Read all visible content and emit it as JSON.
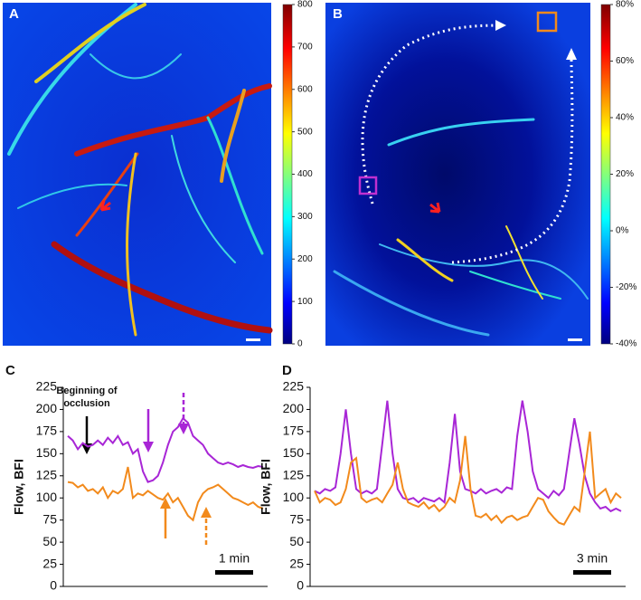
{
  "chart_data": [
    {
      "type": "heatmap",
      "panel": "A",
      "clim": [
        0,
        800
      ],
      "cticks": [
        0,
        100,
        200,
        300,
        400,
        500,
        600,
        700,
        800
      ]
    },
    {
      "type": "heatmap",
      "panel": "B",
      "clim": [
        -40,
        80
      ],
      "cticks": [
        {
          "value": -40,
          "label": "-40%"
        },
        {
          "value": -20,
          "label": "-20%"
        },
        {
          "value": 0,
          "label": "0%"
        },
        {
          "value": 20,
          "label": "20%"
        },
        {
          "value": 40,
          "label": "40%"
        },
        {
          "value": 60,
          "label": "60%"
        },
        {
          "value": 80,
          "label": "80%"
        }
      ]
    },
    {
      "type": "line",
      "panel": "C",
      "ylabel": "Flow, BFI",
      "ylim": [
        0,
        225
      ],
      "yticks": [
        0,
        25,
        50,
        75,
        100,
        125,
        150,
        175,
        200,
        225
      ],
      "annotation": [
        "Beginning of",
        "occlusion"
      ],
      "scalebar": "1 min",
      "series": [
        {
          "color": "#a826d6",
          "values": [
            170,
            165,
            155,
            162,
            158,
            160,
            165,
            160,
            168,
            162,
            170,
            160,
            163,
            150,
            155,
            130,
            118,
            120,
            125,
            140,
            160,
            175,
            180,
            190,
            185,
            170,
            165,
            160,
            150,
            145,
            140,
            138,
            140,
            138,
            135,
            137,
            135,
            134,
            136,
            135
          ]
        },
        {
          "color": "#f28a1c",
          "values": [
            118,
            117,
            112,
            115,
            108,
            110,
            105,
            112,
            100,
            108,
            105,
            110,
            135,
            100,
            105,
            103,
            108,
            104,
            100,
            98,
            105,
            95,
            100,
            90,
            80,
            75,
            95,
            105,
            110,
            112,
            115,
            110,
            105,
            100,
            98,
            95,
            92,
            95,
            90,
            88
          ]
        }
      ]
    },
    {
      "type": "line",
      "panel": "D",
      "ylabel": "Flow, BFI",
      "ylim": [
        0,
        225
      ],
      "yticks": [
        0,
        25,
        50,
        75,
        100,
        125,
        150,
        175,
        200,
        225
      ],
      "scalebar": "3 min",
      "series": [
        {
          "color": "#a826d6",
          "values": [
            108,
            105,
            110,
            108,
            112,
            150,
            200,
            150,
            110,
            105,
            108,
            105,
            110,
            160,
            210,
            150,
            110,
            100,
            98,
            100,
            95,
            100,
            98,
            96,
            100,
            95,
            140,
            195,
            130,
            110,
            108,
            105,
            110,
            105,
            108,
            110,
            106,
            112,
            110,
            170,
            210,
            175,
            130,
            110,
            105,
            100,
            108,
            103,
            110,
            150,
            190,
            160,
            125,
            105,
            95,
            88,
            90,
            85,
            88,
            85
          ]
        },
        {
          "color": "#f28a1c",
          "values": [
            108,
            95,
            100,
            98,
            92,
            95,
            110,
            140,
            145,
            100,
            95,
            98,
            100,
            95,
            105,
            115,
            140,
            110,
            95,
            92,
            90,
            95,
            88,
            92,
            85,
            90,
            100,
            95,
            120,
            170,
            110,
            80,
            78,
            82,
            75,
            80,
            72,
            78,
            80,
            75,
            78,
            80,
            90,
            100,
            98,
            85,
            78,
            72,
            70,
            80,
            90,
            85,
            130,
            175,
            100,
            105,
            110,
            95,
            105,
            100
          ]
        }
      ]
    }
  ]
}
